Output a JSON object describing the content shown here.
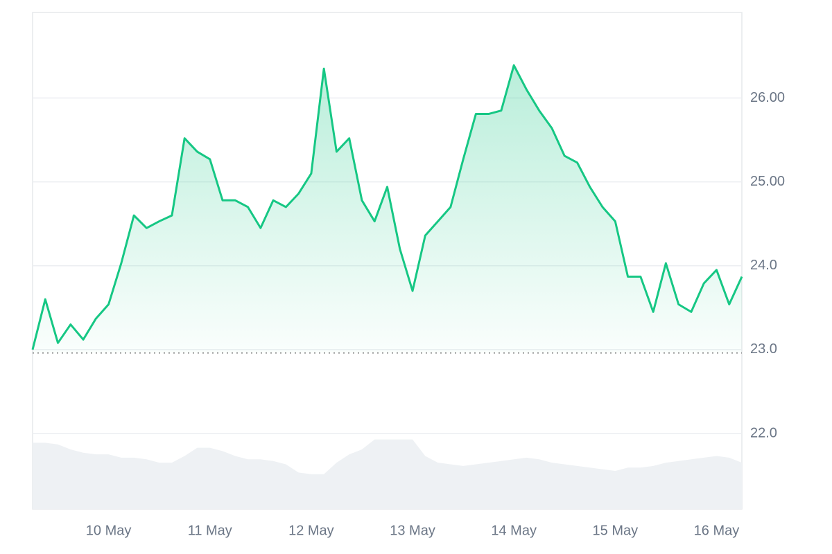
{
  "chart_data": {
    "type": "line",
    "categories": [
      null,
      null,
      null,
      null,
      null,
      null,
      "10 May",
      null,
      null,
      null,
      null,
      null,
      null,
      null,
      "11 May",
      null,
      null,
      null,
      null,
      null,
      null,
      null,
      "12 May",
      null,
      null,
      null,
      null,
      null,
      null,
      null,
      "13 May",
      null,
      null,
      null,
      null,
      null,
      null,
      null,
      "14 May",
      null,
      null,
      null,
      null,
      null,
      null,
      null,
      "15 May",
      null,
      null,
      null,
      null,
      null,
      null,
      null,
      "16 May",
      null,
      null
    ],
    "series": [
      {
        "color": "#16c784",
        "values": [
          23.0,
          23.6,
          23.08,
          23.3,
          23.12,
          23.37,
          23.54,
          24.03,
          24.6,
          24.45,
          24.53,
          24.6,
          25.52,
          25.36,
          25.27,
          24.78,
          24.78,
          24.7,
          24.45,
          24.78,
          24.7,
          24.86,
          25.1,
          26.35,
          25.36,
          25.52,
          24.78,
          24.53,
          24.94,
          24.2,
          23.7,
          24.36,
          24.53,
          24.7,
          25.27,
          25.81,
          25.81,
          25.85,
          26.39,
          26.1,
          25.85,
          25.64,
          25.31,
          25.23,
          24.94,
          24.7,
          24.53,
          23.87,
          23.87,
          23.45,
          24.03,
          23.54,
          23.45,
          23.79,
          23.95,
          23.54,
          23.87
        ]
      }
    ],
    "volume": {
      "color": "#eef1f4",
      "values": [
        40,
        40,
        39,
        36,
        34,
        33,
        33,
        31,
        31,
        30,
        28,
        28,
        32,
        37,
        37,
        35,
        32,
        30,
        30,
        29,
        27,
        22,
        21,
        21,
        28,
        33,
        36,
        42,
        42,
        42,
        42,
        32,
        28,
        27,
        26,
        27,
        28,
        29,
        30,
        31,
        30,
        28,
        27,
        26,
        25,
        24,
        23,
        25,
        25,
        26,
        28,
        29,
        30,
        31,
        32,
        31,
        28
      ],
      "lim": [
        0,
        300
      ]
    },
    "baseline": 22.96,
    "ylim": [
      21.1,
      27.02
    ],
    "yticks": [
      {
        "value": 22,
        "label": "22.0"
      },
      {
        "value": 23,
        "label": "23.0"
      },
      {
        "value": 24,
        "label": "24.0"
      },
      {
        "value": 25,
        "label": "25.00"
      },
      {
        "value": 26,
        "label": "26.00"
      }
    ],
    "grid": true
  }
}
